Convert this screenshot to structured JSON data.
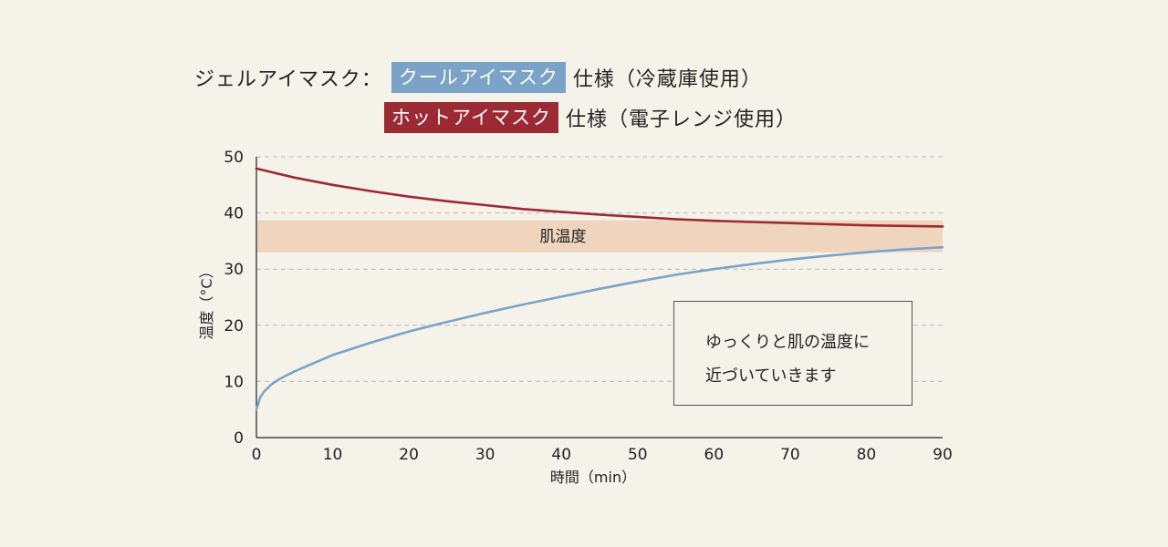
{
  "legend": {
    "title": "ジェルアイマスク：",
    "cool_tag": "クールアイマスク",
    "cool_spec": "仕様（冷蔵庫使用）",
    "hot_tag": "ホットアイマスク",
    "hot_spec": "仕様（電子レンジ使用）"
  },
  "colors": {
    "background": "#f5f2ea",
    "cool": "#7ba3c8",
    "hot": "#9c2a35",
    "band": "#f0d5be",
    "grid": "#b8b8b8"
  },
  "note": {
    "line1": "ゆっくりと肌の温度に",
    "line2": "近づいていきます"
  },
  "chart_data": {
    "type": "line",
    "xlabel": "時間（min）",
    "ylabel": "温度（°C）",
    "xlim": [
      0,
      90
    ],
    "ylim": [
      0,
      50
    ],
    "xticks": [
      0,
      10,
      20,
      30,
      40,
      50,
      60,
      70,
      80,
      90
    ],
    "yticks": [
      0,
      10,
      20,
      30,
      40,
      50
    ],
    "grid": true,
    "band": {
      "label": "肌温度",
      "from": 33,
      "to": 38.7
    },
    "series": [
      {
        "name": "ホットアイマスク",
        "x": [
          0,
          5,
          10,
          15,
          20,
          25,
          30,
          35,
          40,
          45,
          50,
          55,
          60,
          65,
          70,
          75,
          80,
          85,
          90
        ],
        "values": [
          47.9,
          46.3,
          45.0,
          43.9,
          42.9,
          42.1,
          41.4,
          40.7,
          40.2,
          39.7,
          39.3,
          38.9,
          38.6,
          38.4,
          38.2,
          38.0,
          37.8,
          37.7,
          37.6
        ]
      },
      {
        "name": "クールアイマスク",
        "x": [
          0,
          0.5,
          1,
          2,
          3,
          5,
          10,
          15,
          20,
          25,
          30,
          35,
          40,
          45,
          50,
          55,
          60,
          65,
          70,
          75,
          80,
          85,
          90
        ],
        "values": [
          5,
          7.2,
          8.2,
          9.5,
          10.4,
          11.8,
          14.7,
          16.9,
          18.9,
          20.6,
          22.2,
          23.7,
          25.1,
          26.5,
          27.8,
          29.0,
          30.0,
          30.9,
          31.7,
          32.4,
          33.0,
          33.5,
          33.9
        ]
      }
    ]
  }
}
